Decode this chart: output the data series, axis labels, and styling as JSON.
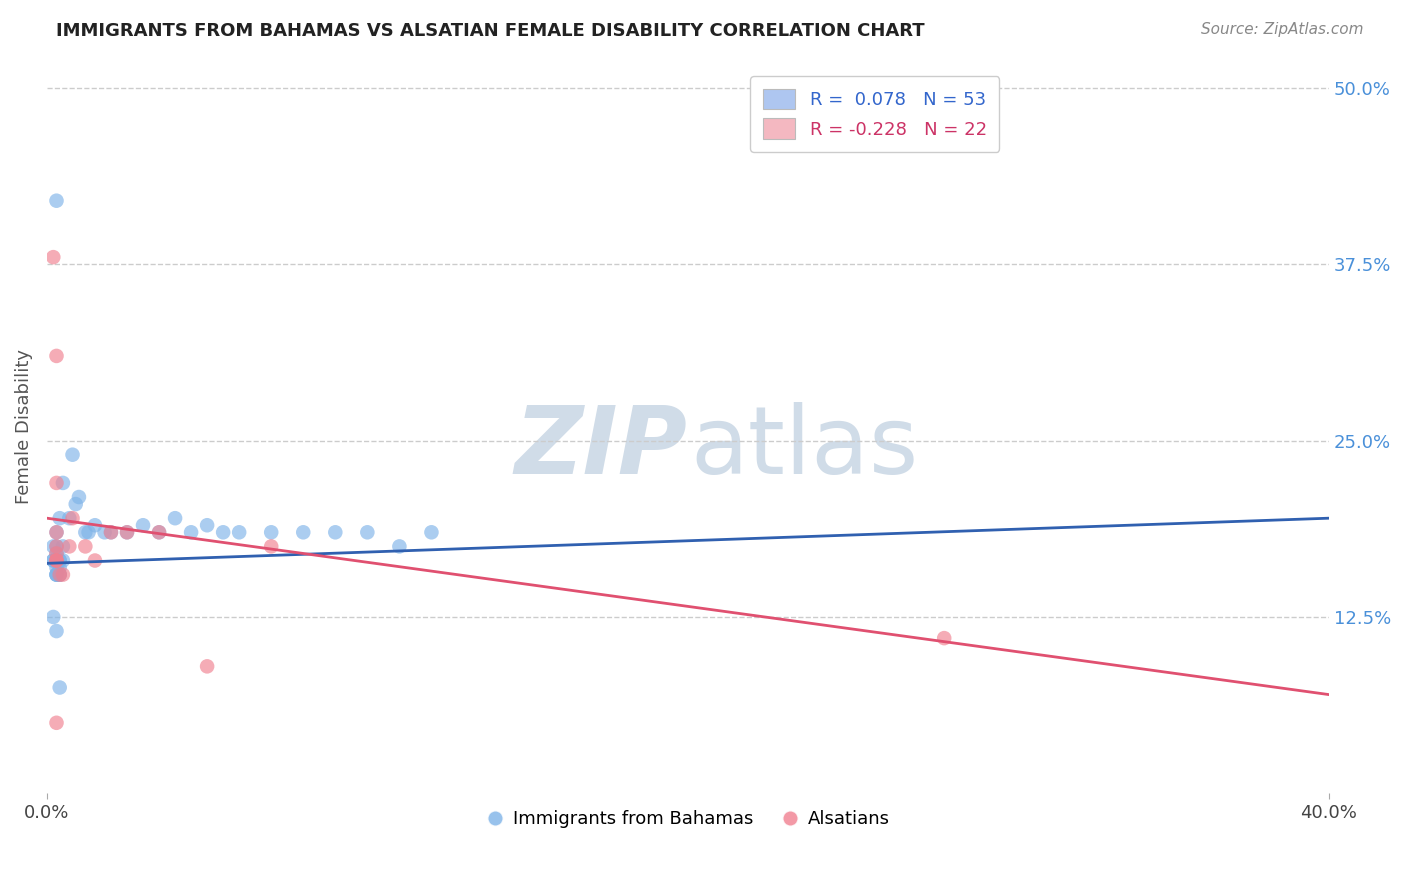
{
  "title": "IMMIGRANTS FROM BAHAMAS VS ALSATIAN FEMALE DISABILITY CORRELATION CHART",
  "source": "Source: ZipAtlas.com",
  "ylabel": "Female Disability",
  "right_yticks": [
    "50.0%",
    "37.5%",
    "25.0%",
    "12.5%"
  ],
  "right_ytick_vals": [
    0.5,
    0.375,
    0.25,
    0.125
  ],
  "xlim": [
    0.0,
    0.4
  ],
  "ylim": [
    0.0,
    0.52
  ],
  "legend_entries": [
    {
      "label": "R =  0.078   N = 53",
      "color": "#aec6f0"
    },
    {
      "label": "R = -0.228   N = 22",
      "color": "#f4b8c1"
    }
  ],
  "blue_scatter_x": [
    0.003,
    0.005,
    0.004,
    0.003,
    0.002,
    0.002,
    0.003,
    0.002,
    0.003,
    0.003,
    0.003,
    0.003,
    0.004,
    0.003,
    0.003,
    0.004,
    0.003,
    0.003,
    0.004,
    0.003,
    0.003,
    0.004,
    0.003,
    0.004,
    0.003,
    0.005,
    0.005,
    0.007,
    0.008,
    0.009,
    0.01,
    0.012,
    0.013,
    0.015,
    0.018,
    0.02,
    0.025,
    0.03,
    0.035,
    0.04,
    0.045,
    0.05,
    0.055,
    0.06,
    0.07,
    0.08,
    0.09,
    0.1,
    0.11,
    0.12,
    0.002,
    0.003,
    0.004
  ],
  "blue_scatter_y": [
    0.42,
    0.22,
    0.195,
    0.185,
    0.175,
    0.165,
    0.175,
    0.165,
    0.165,
    0.165,
    0.17,
    0.165,
    0.16,
    0.165,
    0.165,
    0.165,
    0.16,
    0.165,
    0.165,
    0.165,
    0.155,
    0.155,
    0.155,
    0.155,
    0.155,
    0.165,
    0.175,
    0.195,
    0.24,
    0.205,
    0.21,
    0.185,
    0.185,
    0.19,
    0.185,
    0.185,
    0.185,
    0.19,
    0.185,
    0.195,
    0.185,
    0.19,
    0.185,
    0.185,
    0.185,
    0.185,
    0.185,
    0.185,
    0.175,
    0.185,
    0.125,
    0.115,
    0.075
  ],
  "pink_scatter_x": [
    0.002,
    0.003,
    0.003,
    0.003,
    0.003,
    0.003,
    0.003,
    0.003,
    0.003,
    0.004,
    0.005,
    0.007,
    0.008,
    0.012,
    0.015,
    0.02,
    0.025,
    0.035,
    0.05,
    0.07,
    0.28,
    0.003
  ],
  "pink_scatter_y": [
    0.38,
    0.31,
    0.22,
    0.185,
    0.175,
    0.17,
    0.165,
    0.165,
    0.165,
    0.155,
    0.155,
    0.175,
    0.195,
    0.175,
    0.165,
    0.185,
    0.185,
    0.185,
    0.09,
    0.175,
    0.11,
    0.05
  ],
  "blue_line_x": [
    0.0,
    0.4
  ],
  "blue_line_y": [
    0.163,
    0.195
  ],
  "pink_line_x": [
    0.0,
    0.4
  ],
  "pink_line_y": [
    0.195,
    0.07
  ],
  "scatter_size": 110,
  "blue_color": "#7EB3E8",
  "pink_color": "#F08090",
  "blue_line_color": "#3060B0",
  "pink_line_color": "#E05070",
  "grid_color": "#cccccc",
  "bg_color": "#ffffff",
  "watermark_color": "#d0dce8",
  "legend_text_blue": "#3366cc",
  "legend_text_pink": "#cc3366"
}
